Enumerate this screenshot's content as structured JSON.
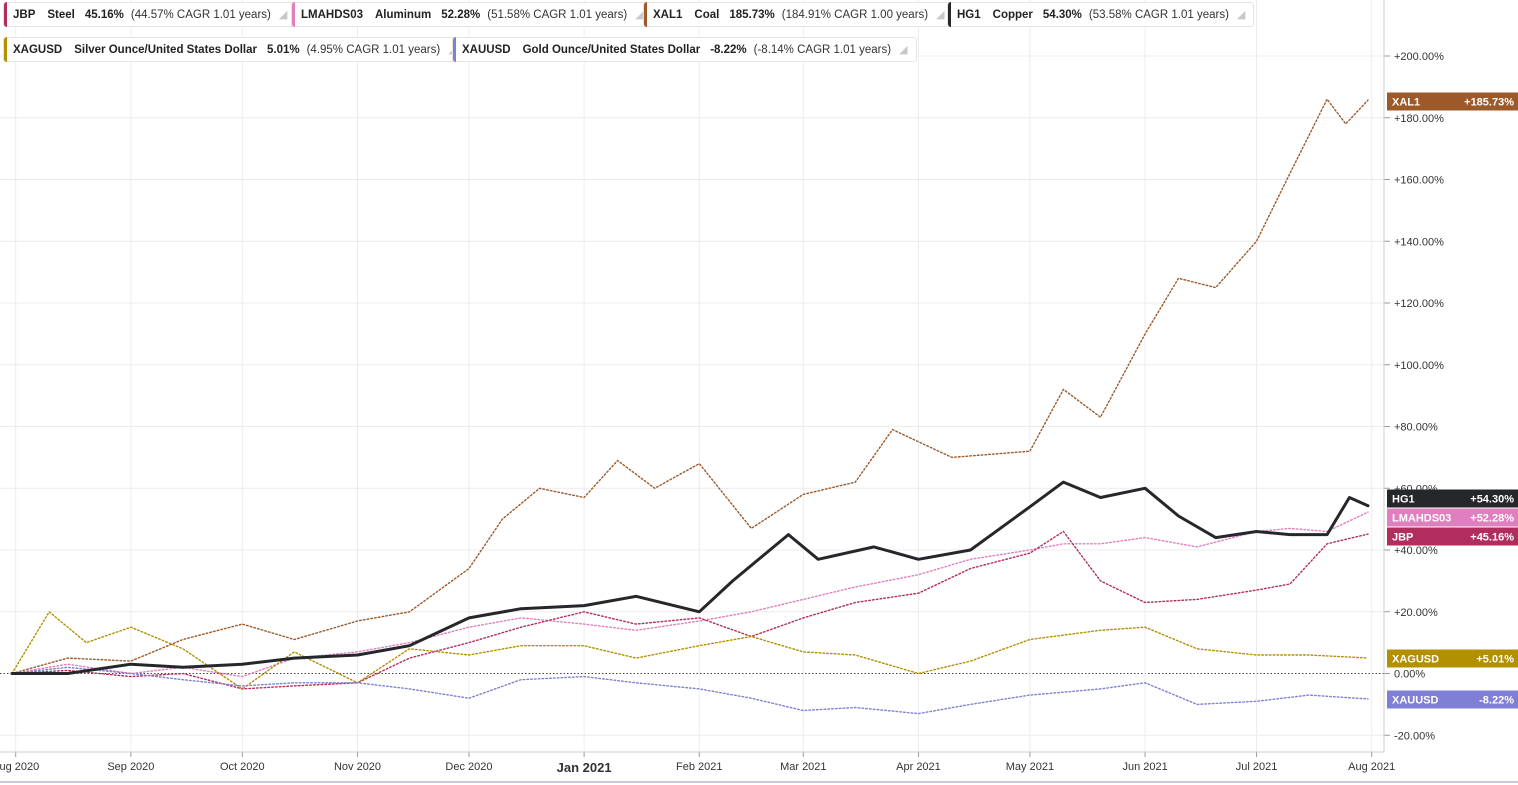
{
  "legend": [
    {
      "symbol": "JBP",
      "name": "Steel",
      "change": "45.16%",
      "cagr": "(44.57% CAGR 1.01 years)",
      "color": "#b02d5e",
      "icon": "bell-icon"
    },
    {
      "symbol": "LMAHDS03",
      "name": "Aluminum",
      "change": "52.28%",
      "cagr": "(51.58% CAGR 1.01 years)",
      "color": "#e07fbf",
      "icon": "bell-icon"
    },
    {
      "symbol": "XAL1",
      "name": "Coal",
      "change": "185.73%",
      "cagr": "(184.91% CAGR 1.00 years)",
      "color": "#9c5a2b",
      "icon": "bell-icon"
    },
    {
      "symbol": "HG1",
      "name": "Copper",
      "change": "54.30%",
      "cagr": "(53.58% CAGR 1.01 years)",
      "color": "#26272b",
      "icon": "bell-icon"
    },
    {
      "symbol": "XAGUSD",
      "name": "Silver Ounce/United States Dollar",
      "change": "5.01%",
      "cagr": "(4.95% CAGR 1.01 years)",
      "color": "#b29000",
      "icon": "bell-icon"
    },
    {
      "symbol": "XAUUSD",
      "name": "Gold Ounce/United States Dollar",
      "change": "-8.22%",
      "cagr": "(-8.14% CAGR 1.01 years)",
      "color": "#7f7fd5",
      "icon": "bell-icon"
    }
  ],
  "chart_data": {
    "type": "line",
    "title": "",
    "xlabel": "",
    "ylabel": "",
    "x_ticks": [
      "Aug 2020",
      "Sep 2020",
      "Oct 2020",
      "Nov 2020",
      "Dec 2020",
      "Jan 2021",
      "Feb 2021",
      "Mar 2021",
      "Apr 2021",
      "May 2021",
      "Jun 2021",
      "Jul 2021",
      "Aug 2021"
    ],
    "y_ticks": [
      "-20.00%",
      "0.00%",
      "+20.00%",
      "+40.00%",
      "+60.00%",
      "+80.00%",
      "+100.00%",
      "+120.00%",
      "+140.00%",
      "+160.00%",
      "+180.00%",
      "+200.00%"
    ],
    "ylim": [
      -25,
      215
    ],
    "grid": true,
    "legend_position": "top-left",
    "series": [
      {
        "name": "JBP",
        "color": "#b02d5e",
        "style": "dotted",
        "end_label": "+45.16%",
        "x": [
          "2020-07-31",
          "2020-08-15",
          "2020-09-01",
          "2020-09-15",
          "2020-10-01",
          "2020-10-15",
          "2020-11-01",
          "2020-11-15",
          "2020-12-01",
          "2020-12-15",
          "2021-01-01",
          "2021-01-15",
          "2021-02-01",
          "2021-02-15",
          "2021-03-01",
          "2021-03-15",
          "2021-04-01",
          "2021-04-15",
          "2021-05-01",
          "2021-05-10",
          "2021-05-20",
          "2021-06-01",
          "2021-06-15",
          "2021-07-01",
          "2021-07-10",
          "2021-07-20",
          "2021-07-31"
        ],
        "values": [
          0,
          1,
          -1,
          0,
          -5,
          -4,
          -3,
          5,
          10,
          15,
          20,
          16,
          18,
          12,
          18,
          23,
          26,
          34,
          39,
          46,
          30,
          23,
          24,
          27,
          29,
          42,
          45.16
        ]
      },
      {
        "name": "LMAHDS03",
        "color": "#e07fbf",
        "style": "dotted",
        "end_label": "+52.28%",
        "x": [
          "2020-07-31",
          "2020-08-15",
          "2020-09-01",
          "2020-09-15",
          "2020-10-01",
          "2020-10-15",
          "2020-11-01",
          "2020-11-15",
          "2020-12-01",
          "2020-12-15",
          "2021-01-01",
          "2021-01-15",
          "2021-02-01",
          "2021-02-15",
          "2021-03-01",
          "2021-03-15",
          "2021-04-01",
          "2021-04-15",
          "2021-05-01",
          "2021-05-10",
          "2021-05-20",
          "2021-06-01",
          "2021-06-15",
          "2021-07-01",
          "2021-07-10",
          "2021-07-20",
          "2021-07-31"
        ],
        "values": [
          0,
          3,
          0,
          2,
          -1,
          5,
          7,
          10,
          15,
          18,
          16,
          14,
          17,
          20,
          24,
          28,
          32,
          37,
          40,
          42,
          42,
          44,
          41,
          46,
          47,
          46,
          52.28
        ]
      },
      {
        "name": "XAL1",
        "color": "#9c5a2b",
        "style": "dotted",
        "end_label": "+185.73%",
        "x": [
          "2020-07-31",
          "2020-08-15",
          "2020-09-01",
          "2020-09-15",
          "2020-10-01",
          "2020-10-15",
          "2020-11-01",
          "2020-11-15",
          "2020-12-01",
          "2020-12-10",
          "2020-12-20",
          "2021-01-01",
          "2021-01-10",
          "2021-01-20",
          "2021-02-01",
          "2021-02-15",
          "2021-03-01",
          "2021-03-15",
          "2021-03-25",
          "2021-04-10",
          "2021-05-01",
          "2021-05-10",
          "2021-05-20",
          "2021-06-01",
          "2021-06-10",
          "2021-06-20",
          "2021-07-01",
          "2021-07-10",
          "2021-07-20",
          "2021-07-25",
          "2021-07-31"
        ],
        "values": [
          0,
          5,
          4,
          11,
          16,
          11,
          17,
          20,
          34,
          50,
          60,
          57,
          69,
          60,
          68,
          47,
          58,
          62,
          79,
          70,
          72,
          92,
          83,
          110,
          128,
          125,
          140,
          162,
          186,
          178,
          185.73
        ]
      },
      {
        "name": "HG1",
        "color": "#26272b",
        "style": "solid",
        "end_label": "+54.30%",
        "x": [
          "2020-07-31",
          "2020-08-15",
          "2020-09-01",
          "2020-09-15",
          "2020-10-01",
          "2020-10-15",
          "2020-11-01",
          "2020-11-15",
          "2020-12-01",
          "2020-12-15",
          "2021-01-01",
          "2021-01-15",
          "2021-02-01",
          "2021-02-10",
          "2021-02-25",
          "2021-03-05",
          "2021-03-20",
          "2021-04-01",
          "2021-04-15",
          "2021-05-01",
          "2021-05-10",
          "2021-05-20",
          "2021-06-01",
          "2021-06-10",
          "2021-06-20",
          "2021-07-01",
          "2021-07-10",
          "2021-07-20",
          "2021-07-26",
          "2021-07-31"
        ],
        "values": [
          0,
          0,
          3,
          2,
          3,
          5,
          6,
          9,
          18,
          21,
          22,
          25,
          20,
          30,
          45,
          37,
          41,
          37,
          40,
          54,
          62,
          57,
          60,
          51,
          44,
          46,
          45,
          45,
          57,
          54.3
        ]
      },
      {
        "name": "XAGUSD",
        "color": "#b29000",
        "style": "dotted",
        "end_label": "+5.01%",
        "x": [
          "2020-07-31",
          "2020-08-10",
          "2020-08-20",
          "2020-09-01",
          "2020-09-15",
          "2020-10-01",
          "2020-10-15",
          "2020-11-01",
          "2020-11-15",
          "2020-12-01",
          "2020-12-15",
          "2021-01-01",
          "2021-01-15",
          "2021-02-01",
          "2021-02-15",
          "2021-03-01",
          "2021-03-15",
          "2021-04-01",
          "2021-04-15",
          "2021-05-01",
          "2021-05-20",
          "2021-06-01",
          "2021-06-15",
          "2021-07-01",
          "2021-07-15",
          "2021-07-31"
        ],
        "values": [
          0,
          20,
          10,
          15,
          8,
          -5,
          7,
          -3,
          8,
          6,
          9,
          9,
          5,
          9,
          12,
          7,
          6,
          0,
          4,
          11,
          14,
          15,
          8,
          6,
          6,
          5.01
        ]
      },
      {
        "name": "XAUUSD",
        "color": "#7f7fd5",
        "style": "dotted",
        "end_label": "-8.22%",
        "x": [
          "2020-07-31",
          "2020-08-15",
          "2020-09-01",
          "2020-09-15",
          "2020-10-01",
          "2020-10-15",
          "2020-11-01",
          "2020-11-15",
          "2020-12-01",
          "2020-12-15",
          "2021-01-01",
          "2021-01-15",
          "2021-02-01",
          "2021-02-15",
          "2021-03-01",
          "2021-03-15",
          "2021-04-01",
          "2021-04-15",
          "2021-05-01",
          "2021-05-20",
          "2021-06-01",
          "2021-06-15",
          "2021-07-01",
          "2021-07-15",
          "2021-07-31"
        ],
        "values": [
          0,
          2,
          0,
          -2,
          -4,
          -3,
          -3,
          -5,
          -8,
          -2,
          -1,
          -3,
          -5,
          -8,
          -12,
          -11,
          -13,
          -10,
          -7,
          -5,
          -3,
          -10,
          -9,
          -7,
          -8.22
        ]
      }
    ]
  }
}
